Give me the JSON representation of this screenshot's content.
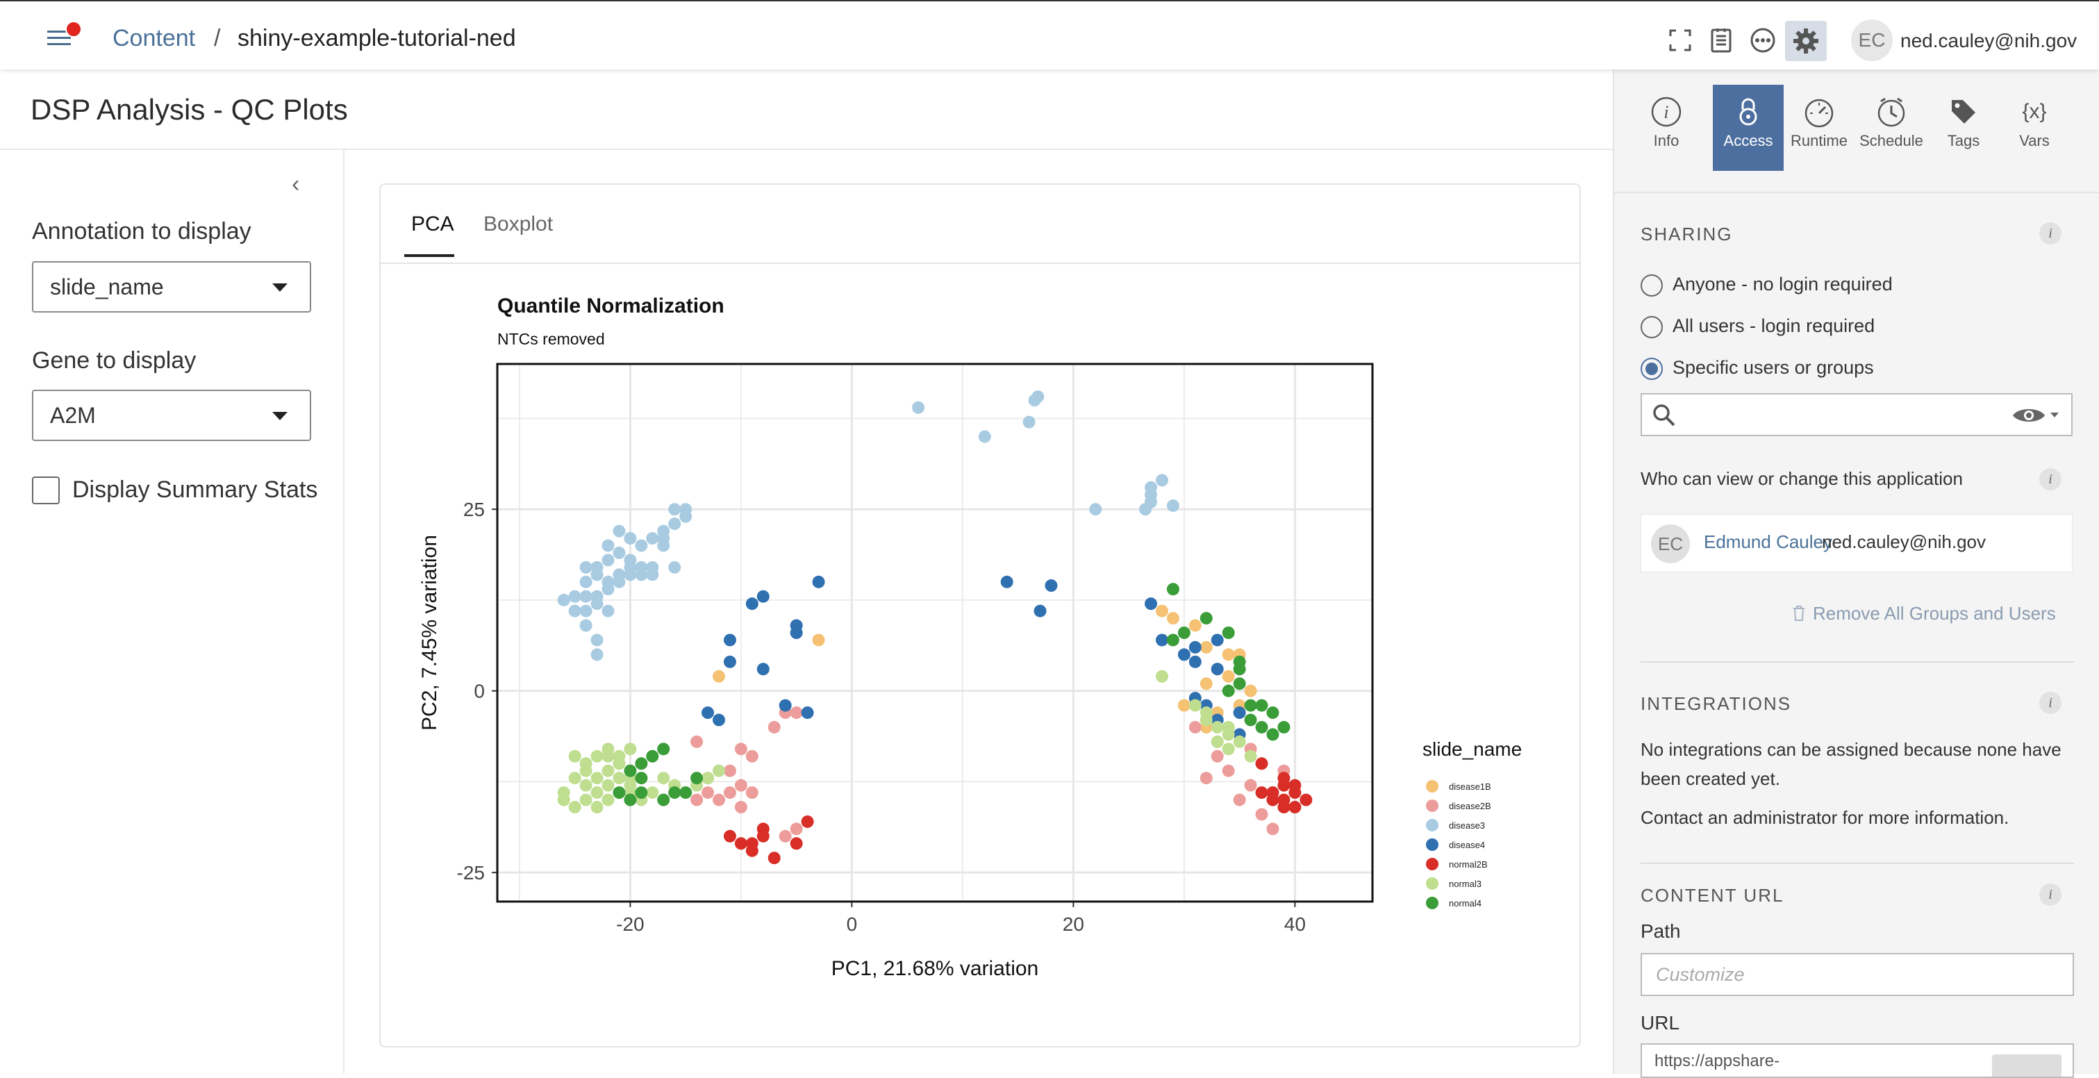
{
  "header": {
    "breadcrumb_link": "Content",
    "breadcrumb_sep": "/",
    "breadcrumb_current": "shiny-example-tutorial-ned",
    "avatar_initials": "EC",
    "user_email": "ned.cauley@nih.gov",
    "icons": [
      "menu-icon",
      "fullscreen-icon",
      "report-icon",
      "more-icon",
      "gear-icon"
    ]
  },
  "page": {
    "title": "DSP Analysis - QC Plots"
  },
  "controls": {
    "annotation_label": "Annotation to display",
    "annotation_value": "slide_name",
    "gene_label": "Gene to display",
    "gene_value": "A2M",
    "summary_label": "Display Summary Stats",
    "summary_checked": false
  },
  "tabs": [
    {
      "label": "PCA",
      "active": true
    },
    {
      "label": "Boxplot",
      "active": false
    }
  ],
  "chart_data": {
    "type": "scatter",
    "title": "Quantile Normalization",
    "subtitle": "NTCs removed",
    "xlabel": "PC1, 21.68% variation",
    "ylabel": "PC2, 7.45% variation",
    "xlim": [
      -32,
      47
    ],
    "ylim": [
      -29,
      45
    ],
    "xticks": [
      -20,
      0,
      20,
      40
    ],
    "yticks": [
      -25,
      0,
      25
    ],
    "grid": true,
    "legend_title": "slide_name",
    "legend_position": "right",
    "series": [
      {
        "name": "disease1B",
        "color": "#f5c173",
        "points": [
          [
            -3,
            7
          ],
          [
            -12,
            2
          ],
          [
            28,
            11
          ],
          [
            29,
            10
          ],
          [
            31,
            9
          ],
          [
            32,
            6
          ],
          [
            33,
            3
          ],
          [
            34,
            5
          ],
          [
            34,
            2
          ],
          [
            32,
            1
          ],
          [
            31,
            -1
          ],
          [
            33,
            -3
          ],
          [
            35,
            -2
          ],
          [
            30,
            -2
          ],
          [
            32,
            -5
          ],
          [
            35,
            5
          ],
          [
            36,
            0
          ]
        ]
      },
      {
        "name": "disease2B",
        "color": "#ec9d9b",
        "points": [
          [
            -14,
            -7
          ],
          [
            -13,
            -12
          ],
          [
            -11,
            -11
          ],
          [
            -10,
            -13
          ],
          [
            -9,
            -14
          ],
          [
            -12,
            -15
          ],
          [
            -10,
            -16
          ],
          [
            -13,
            -14
          ],
          [
            -7,
            -5
          ],
          [
            -6,
            -3
          ],
          [
            -5,
            -3
          ],
          [
            -10,
            -8
          ],
          [
            -9,
            -9
          ],
          [
            -11,
            -14
          ],
          [
            -14,
            -15
          ],
          [
            -5,
            -19
          ],
          [
            -6,
            -20
          ],
          [
            34,
            -11
          ],
          [
            35,
            -15
          ],
          [
            38,
            -19
          ],
          [
            37,
            -17
          ],
          [
            38,
            -14
          ],
          [
            36,
            -8
          ],
          [
            33,
            -7
          ],
          [
            39,
            -11
          ],
          [
            36,
            -13
          ],
          [
            31,
            -5
          ],
          [
            33,
            -9
          ],
          [
            32,
            -12
          ]
        ]
      },
      {
        "name": "disease3",
        "color": "#a8cbe2",
        "points": [
          [
            6,
            39
          ],
          [
            12,
            35
          ],
          [
            16,
            37
          ],
          [
            16.5,
            40
          ],
          [
            16.8,
            40.5
          ],
          [
            22,
            25
          ],
          [
            27,
            27
          ],
          [
            28,
            29
          ],
          [
            27,
            28
          ],
          [
            27,
            26
          ],
          [
            26.5,
            25
          ],
          [
            29,
            25.5
          ],
          [
            -26,
            12.5
          ],
          [
            -25,
            13
          ],
          [
            -24,
            13
          ],
          [
            -23,
            13
          ],
          [
            -24,
            11
          ],
          [
            -25,
            11
          ],
          [
            -23,
            12
          ],
          [
            -22,
            11
          ],
          [
            -24,
            9
          ],
          [
            -23,
            7
          ],
          [
            -23,
            5
          ],
          [
            -24,
            15
          ],
          [
            -23,
            16
          ],
          [
            -24,
            17
          ],
          [
            -23,
            17
          ],
          [
            -22,
            18
          ],
          [
            -21,
            19
          ],
          [
            -22,
            20
          ],
          [
            -20,
            21
          ],
          [
            -21,
            22
          ],
          [
            -19,
            20
          ],
          [
            -18,
            21
          ],
          [
            -17,
            21
          ],
          [
            -18,
            17
          ],
          [
            -19,
            16
          ],
          [
            -20,
            16
          ],
          [
            -21,
            15
          ],
          [
            -20,
            18
          ],
          [
            -19,
            17
          ],
          [
            -17,
            20
          ],
          [
            -16,
            25
          ],
          [
            -15,
            25
          ],
          [
            -15,
            24
          ],
          [
            -16,
            23
          ],
          [
            -17,
            22
          ],
          [
            -16,
            17
          ],
          [
            -22,
            15
          ],
          [
            -21,
            16
          ],
          [
            -22,
            14
          ],
          [
            -23,
            16
          ],
          [
            -20,
            17
          ],
          [
            -18,
            16
          ]
        ]
      },
      {
        "name": "disease4",
        "color": "#2f70b1",
        "points": [
          [
            -3,
            15
          ],
          [
            -8,
            13
          ],
          [
            -9,
            12
          ],
          [
            -11,
            7
          ],
          [
            -11,
            4
          ],
          [
            -8,
            3
          ],
          [
            -5,
            9
          ],
          [
            -5,
            8
          ],
          [
            -6,
            -2
          ],
          [
            -4,
            -3
          ],
          [
            -13,
            -3
          ],
          [
            -12,
            -4
          ],
          [
            14,
            15
          ],
          [
            17,
            11
          ],
          [
            18,
            14.5
          ],
          [
            27,
            12
          ],
          [
            28,
            7
          ],
          [
            31,
            6
          ],
          [
            33,
            7
          ],
          [
            30,
            5
          ],
          [
            31,
            4
          ],
          [
            33,
            3
          ],
          [
            32,
            -2
          ],
          [
            33,
            -4
          ],
          [
            35,
            -3
          ],
          [
            35,
            -6
          ],
          [
            31,
            -1
          ]
        ]
      },
      {
        "name": "normal2B",
        "color": "#d92d27",
        "points": [
          [
            -11,
            -20
          ],
          [
            -9,
            -21
          ],
          [
            -8,
            -20
          ],
          [
            -7,
            -23
          ],
          [
            -5,
            -21
          ],
          [
            -4,
            -18
          ],
          [
            -9,
            -22
          ],
          [
            -8,
            -19
          ],
          [
            -10,
            -21
          ],
          [
            37,
            -10
          ],
          [
            39,
            -12
          ],
          [
            38,
            -14
          ],
          [
            39,
            -15
          ],
          [
            40,
            -14
          ],
          [
            41,
            -15
          ],
          [
            40,
            -16
          ],
          [
            39,
            -16
          ],
          [
            38,
            -15
          ],
          [
            37,
            -14
          ],
          [
            39,
            -13
          ],
          [
            40,
            -13
          ]
        ]
      },
      {
        "name": "normal3",
        "color": "#bfde8f",
        "points": [
          [
            -26,
            -14
          ],
          [
            -25,
            -12
          ],
          [
            -24,
            -11
          ],
          [
            -24,
            -13
          ],
          [
            -23,
            -12
          ],
          [
            -23,
            -14
          ],
          [
            -22,
            -13
          ],
          [
            -22,
            -11
          ],
          [
            -21,
            -12
          ],
          [
            -21,
            -14
          ],
          [
            -20,
            -13
          ],
          [
            -20,
            -11
          ],
          [
            -19,
            -12
          ],
          [
            -24,
            -15
          ],
          [
            -23,
            -16
          ],
          [
            -22,
            -15
          ],
          [
            -25,
            -9
          ],
          [
            -24,
            -10
          ],
          [
            -23,
            -9
          ],
          [
            -22,
            -8
          ],
          [
            -21,
            -10
          ],
          [
            -20,
            -8
          ],
          [
            -19,
            -10
          ],
          [
            -18,
            -9
          ],
          [
            -25,
            -16
          ],
          [
            -26,
            -15
          ],
          [
            -22,
            -9
          ],
          [
            -21,
            -9
          ],
          [
            -20,
            -12
          ],
          [
            -17,
            -12
          ],
          [
            -16,
            -13
          ],
          [
            -19,
            -15
          ],
          [
            -20,
            -14
          ],
          [
            -18,
            -14
          ],
          [
            -13,
            -12
          ],
          [
            -12,
            -11
          ],
          [
            -15,
            -14
          ],
          [
            -14,
            -13
          ],
          [
            28,
            2
          ],
          [
            31,
            -2
          ],
          [
            32,
            -4
          ],
          [
            33,
            -5
          ],
          [
            34,
            -6
          ],
          [
            33,
            -7
          ],
          [
            35,
            -7
          ],
          [
            34,
            -8
          ],
          [
            36,
            -9
          ],
          [
            34,
            -5
          ],
          [
            32,
            -3
          ]
        ]
      },
      {
        "name": "normal4",
        "color": "#3a9d38",
        "points": [
          [
            -20,
            -11
          ],
          [
            -19,
            -10
          ],
          [
            -18,
            -9
          ],
          [
            -17,
            -8
          ],
          [
            -21,
            -14
          ],
          [
            -20,
            -15
          ],
          [
            -19,
            -12
          ],
          [
            -19,
            -14
          ],
          [
            -17,
            -15
          ],
          [
            -16,
            -14
          ],
          [
            -15,
            -14
          ],
          [
            -14,
            -12
          ],
          [
            29,
            14
          ],
          [
            30,
            8
          ],
          [
            32,
            10
          ],
          [
            34,
            8
          ],
          [
            35,
            3
          ],
          [
            35,
            4
          ],
          [
            36,
            -2
          ],
          [
            37,
            -2
          ],
          [
            38,
            -3
          ],
          [
            39,
            -5
          ],
          [
            37,
            -5
          ],
          [
            36,
            -4
          ],
          [
            38,
            -6
          ],
          [
            34,
            0
          ],
          [
            35,
            1
          ],
          [
            29,
            7
          ]
        ]
      }
    ]
  },
  "side": {
    "tabs": [
      {
        "label": "Info",
        "icon": "info-icon",
        "active": false
      },
      {
        "label": "Access",
        "icon": "lock-icon",
        "active": true
      },
      {
        "label": "Runtime",
        "icon": "gauge-icon",
        "active": false
      },
      {
        "label": "Schedule",
        "icon": "clock-icon",
        "active": false
      },
      {
        "label": "Tags",
        "icon": "tag-icon",
        "active": false
      },
      {
        "label": "Vars",
        "icon": "vars-icon",
        "active": false
      }
    ],
    "sharing_title": "SHARING",
    "radio_anyone": "Anyone - no login required",
    "radio_all": "All users - login required",
    "radio_specific": "Specific users or groups",
    "selected_radio": "specific",
    "who_label": "Who can view or change this application",
    "owner_initials": "EC",
    "owner_name": "Edmund Cauley",
    "owner_email": "ned.cauley@nih.gov",
    "remove_label": "Remove All Groups and Users",
    "integrations_title": "INTEGRATIONS",
    "integrations_text1": "No integrations can be assigned because none have",
    "integrations_text2": "been created yet.",
    "integrations_text3": "Contact an administrator for more information.",
    "content_url_title": "CONTENT URL",
    "path_label": "Path",
    "path_placeholder": "Customize",
    "url_label": "URL",
    "url_value": "https://appshare-"
  }
}
